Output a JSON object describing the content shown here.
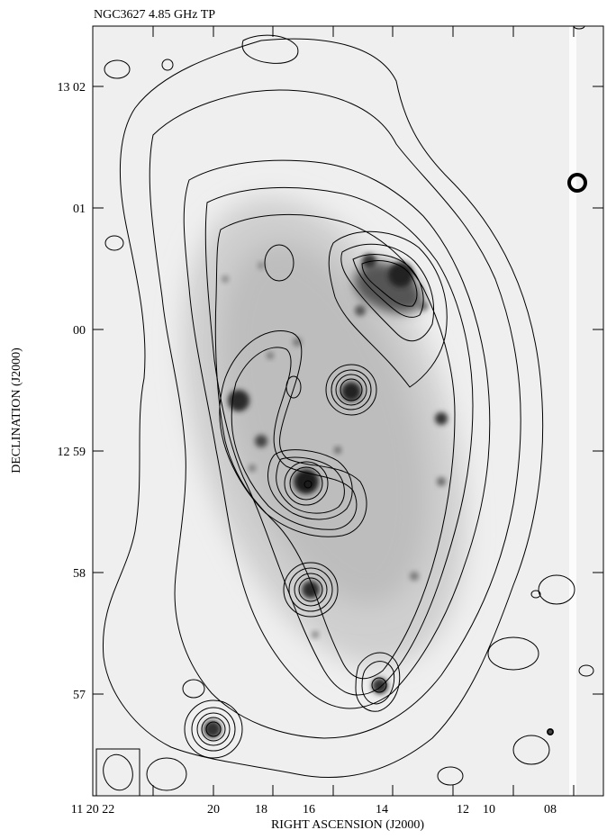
{
  "title": "NGC3627 4.85 GHz TP",
  "x_axis": {
    "label": "RIGHT ASCENSION (J2000)",
    "ticks": [
      "11 20 22",
      "20",
      "18",
      "16",
      "14",
      "12",
      "10",
      "08"
    ]
  },
  "y_axis": {
    "label": "DECLINATION (J2000)",
    "ticks": [
      "13 02",
      "01",
      "00",
      "12 59",
      "58",
      "57"
    ]
  },
  "image": {
    "type": "greyscale optical image with radio contour overlay",
    "background_color": "#ececec",
    "contour_color": "#000000"
  }
}
